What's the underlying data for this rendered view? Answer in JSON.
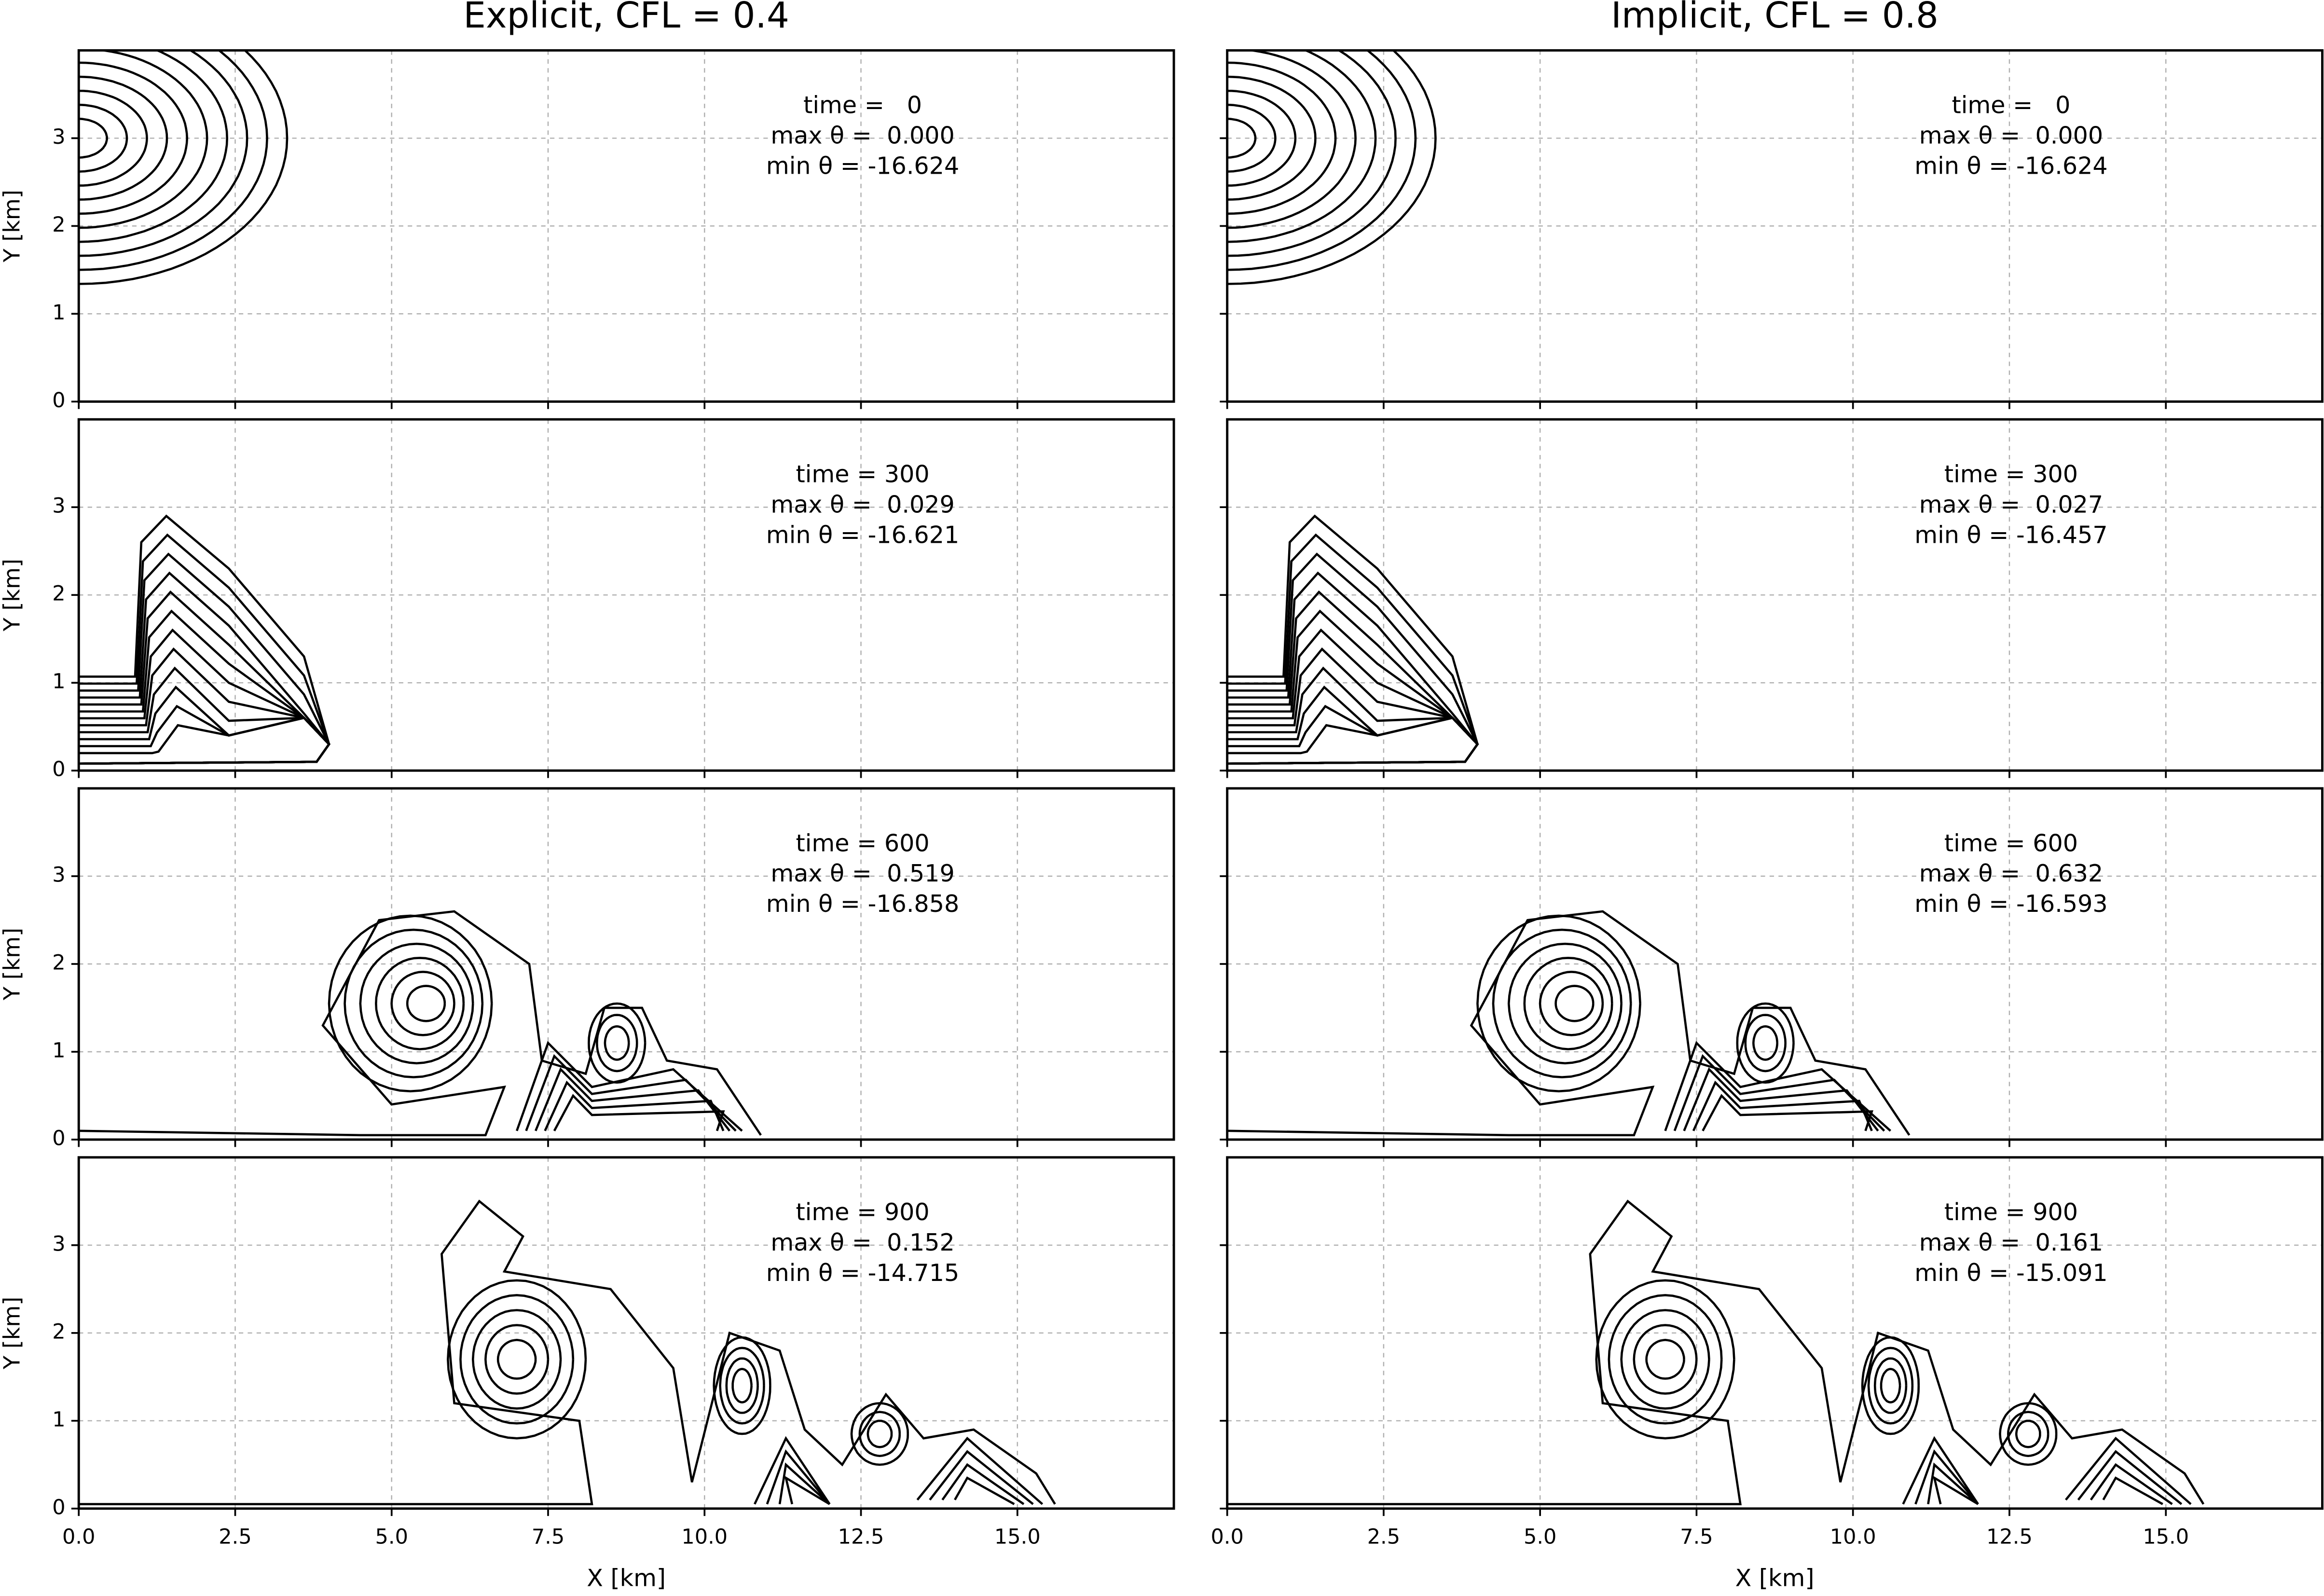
{
  "chart_data": [
    {
      "type": "contour",
      "title": "Explicit, CFL = 0.4",
      "ylabel": "Y [km]",
      "annotation": [
        "time =   0",
        "max θ =  0.000",
        "min θ = -16.624"
      ],
      "xlim": [
        0,
        17.5
      ],
      "ylim": [
        0,
        4
      ],
      "xticks": [
        0,
        2.5,
        5,
        7.5,
        10,
        12.5,
        15
      ],
      "yticks": [
        0,
        1,
        2,
        3
      ],
      "tick_labels": {
        "x": false,
        "y": true
      },
      "grid": true
    },
    {
      "type": "contour",
      "ylabel": "Y [km]",
      "annotation": [
        "time = 300",
        "max θ =  0.029",
        "min θ = -16.621"
      ],
      "xlim": [
        0,
        17.5
      ],
      "ylim": [
        0,
        4
      ],
      "xticks": [
        0,
        2.5,
        5,
        7.5,
        10,
        12.5,
        15
      ],
      "yticks": [
        0,
        1,
        2,
        3
      ],
      "tick_labels": {
        "x": false,
        "y": true
      },
      "grid": true
    },
    {
      "type": "contour",
      "ylabel": "Y [km]",
      "annotation": [
        "time = 600",
        "max θ =  0.519",
        "min θ = -16.858"
      ],
      "xlim": [
        0,
        17.5
      ],
      "ylim": [
        0,
        4
      ],
      "xticks": [
        0,
        2.5,
        5,
        7.5,
        10,
        12.5,
        15
      ],
      "yticks": [
        0,
        1,
        2,
        3
      ],
      "tick_labels": {
        "x": false,
        "y": true
      },
      "grid": true
    },
    {
      "type": "contour",
      "ylabel": "Y [km]",
      "xlabel": "X [km]",
      "annotation": [
        "time = 900",
        "max θ =  0.152",
        "min θ = -14.715"
      ],
      "xlim": [
        0,
        17.5
      ],
      "ylim": [
        0,
        4
      ],
      "xticks": [
        {
          "value": 0,
          "label": "0.0"
        },
        2.5,
        {
          "value": 5,
          "label": "5.0"
        },
        7.5,
        {
          "value": 10,
          "label": "10.0"
        },
        12.5,
        {
          "value": 15,
          "label": "15.0"
        }
      ],
      "yticks": [
        0,
        1,
        2,
        3
      ],
      "tick_labels": {
        "x": true,
        "y": true
      },
      "grid": true
    },
    {
      "type": "contour",
      "title": "Implicit, CFL = 0.8",
      "annotation": [
        "time =   0",
        "max θ =  0.000",
        "min θ = -16.624"
      ],
      "xlim": [
        0,
        17.5
      ],
      "ylim": [
        0,
        4
      ],
      "xticks": [
        0,
        2.5,
        5,
        7.5,
        10,
        12.5,
        15
      ],
      "yticks": [
        0,
        1,
        2,
        3
      ],
      "tick_labels": {
        "x": false,
        "y": false
      },
      "grid": true
    },
    {
      "type": "contour",
      "annotation": [
        "time = 300",
        "max θ =  0.027",
        "min θ = -16.457"
      ],
      "xlim": [
        0,
        17.5
      ],
      "ylim": [
        0,
        4
      ],
      "xticks": [
        0,
        2.5,
        5,
        7.5,
        10,
        12.5,
        15
      ],
      "yticks": [
        0,
        1,
        2,
        3
      ],
      "tick_labels": {
        "x": false,
        "y": false
      },
      "grid": true
    },
    {
      "type": "contour",
      "annotation": [
        "time = 600",
        "max θ =  0.632",
        "min θ = -16.593"
      ],
      "xlim": [
        0,
        17.5
      ],
      "ylim": [
        0,
        4
      ],
      "xticks": [
        0,
        2.5,
        5,
        7.5,
        10,
        12.5,
        15
      ],
      "yticks": [
        0,
        1,
        2,
        3
      ],
      "tick_labels": {
        "x": false,
        "y": false
      },
      "grid": true
    },
    {
      "type": "contour",
      "xlabel": "X [km]",
      "annotation": [
        "time = 900",
        "max θ =  0.161",
        "min θ = -15.091"
      ],
      "xlim": [
        0,
        17.5
      ],
      "ylim": [
        0,
        4
      ],
      "xticks": [
        {
          "value": 0,
          "label": "0.0"
        },
        2.5,
        {
          "value": 5,
          "label": "5.0"
        },
        7.5,
        {
          "value": 10,
          "label": "10.0"
        },
        12.5,
        {
          "value": 15,
          "label": "15.0"
        }
      ],
      "yticks": [
        0,
        1,
        2,
        3
      ],
      "tick_labels": {
        "x": true,
        "y": false
      },
      "grid": true
    }
  ]
}
